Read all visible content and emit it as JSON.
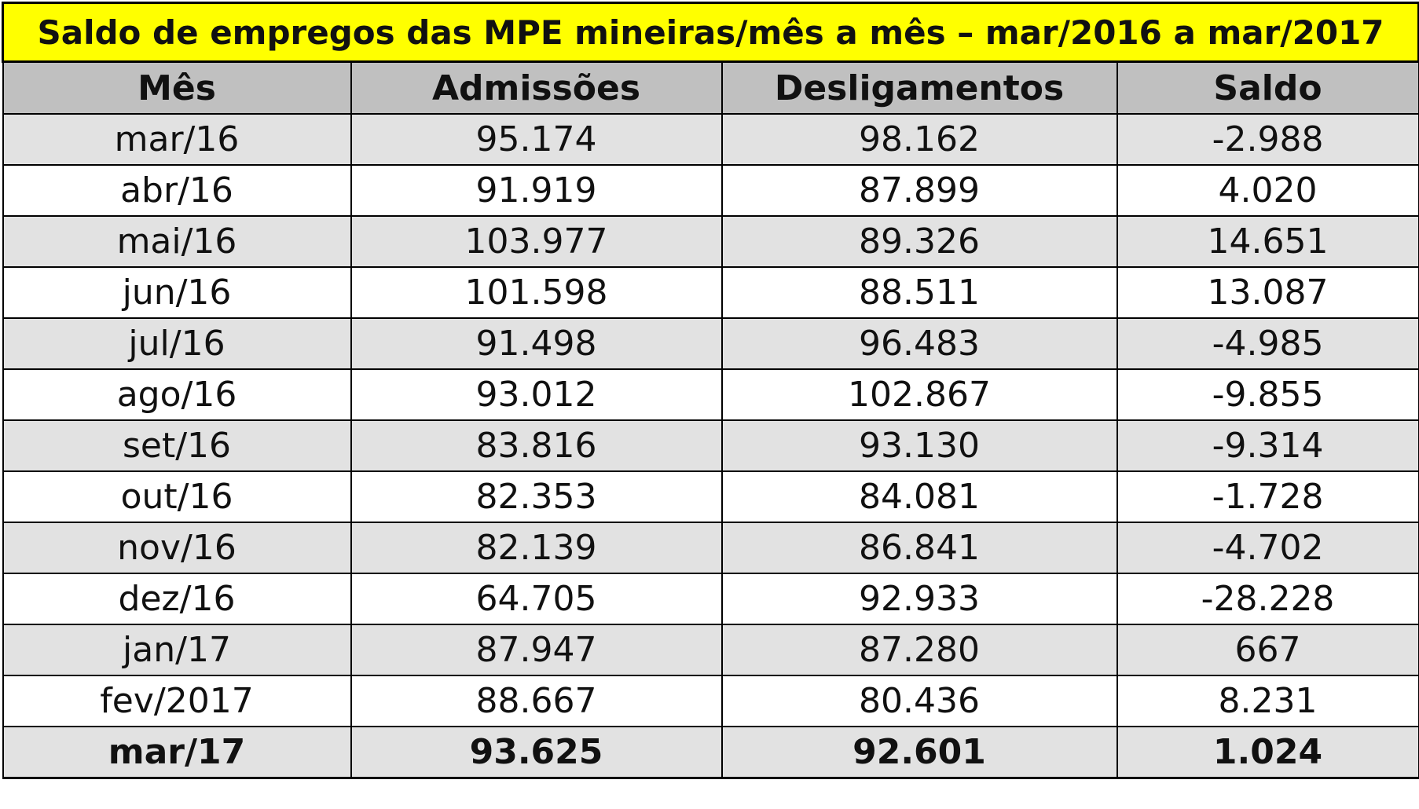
{
  "title": "Saldo de empregos das MPE mineiras/mês a mês – mar/2016 a mar/2017",
  "headers": {
    "month": "Mês",
    "admissions": "Admissões",
    "dismissals": "Desligamentos",
    "balance": "Saldo"
  },
  "rows": [
    {
      "month": "mar/16",
      "admissions": "95.174",
      "dismissals": "98.162",
      "balance": "-2.988"
    },
    {
      "month": "abr/16",
      "admissions": "91.919",
      "dismissals": "87.899",
      "balance": "4.020"
    },
    {
      "month": "mai/16",
      "admissions": "103.977",
      "dismissals": "89.326",
      "balance": "14.651"
    },
    {
      "month": "jun/16",
      "admissions": "101.598",
      "dismissals": "88.511",
      "balance": "13.087"
    },
    {
      "month": "jul/16",
      "admissions": "91.498",
      "dismissals": "96.483",
      "balance": "-4.985"
    },
    {
      "month": "ago/16",
      "admissions": "93.012",
      "dismissals": "102.867",
      "balance": "-9.855"
    },
    {
      "month": "set/16",
      "admissions": "83.816",
      "dismissals": "93.130",
      "balance": "-9.314"
    },
    {
      "month": "out/16",
      "admissions": "82.353",
      "dismissals": "84.081",
      "balance": "-1.728"
    },
    {
      "month": "nov/16",
      "admissions": "82.139",
      "dismissals": "86.841",
      "balance": "-4.702"
    },
    {
      "month": "dez/16",
      "admissions": "64.705",
      "dismissals": "92.933",
      "balance": "-28.228"
    },
    {
      "month": "jan/17",
      "admissions": "87.947",
      "dismissals": "87.280",
      "balance": "667"
    },
    {
      "month": "fev/2017",
      "admissions": "88.667",
      "dismissals": "80.436",
      "balance": "8.231"
    }
  ],
  "total": {
    "month": "mar/17",
    "admissions": "93.625",
    "dismissals": "92.601",
    "balance": "1.024"
  },
  "colors": {
    "title_bg": "#ffff00",
    "header_bg": "#c0c0c0",
    "shaded_row_bg": "#e2e2e2",
    "plain_row_bg": "#ffffff",
    "border": "#000000"
  }
}
